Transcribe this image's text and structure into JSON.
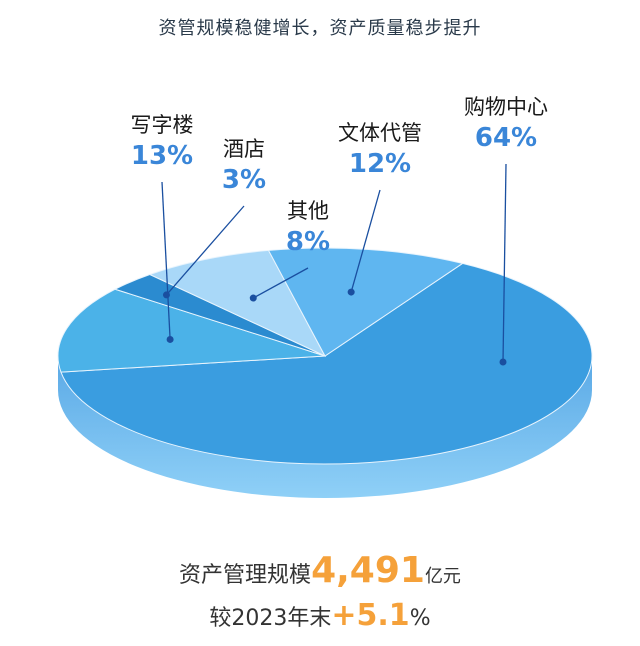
{
  "title": "资管规模稳健增长，资产质量稳步提升",
  "summary": {
    "scale_label": "资产管理规模",
    "scale_value": "4,491",
    "scale_unit": "亿元",
    "growth_label": "较2023年末",
    "growth_sign": "+",
    "growth_value": "5.1",
    "growth_unit": "%"
  },
  "colors": {
    "label_text": "#1a1a1a",
    "pct_text": "#3a86d8",
    "leader": "#1a4fa0",
    "accent": "#f5a13a"
  },
  "chart_data": {
    "type": "pie",
    "title": "",
    "slices": [
      {
        "name": "购物中心",
        "value": 64,
        "label": "64%",
        "color": "#3a9de0"
      },
      {
        "name": "写字楼",
        "value": 13,
        "label": "13%",
        "color": "#4bb2e8"
      },
      {
        "name": "酒店",
        "value": 3,
        "label": "3%",
        "color": "#2b8bd0"
      },
      {
        "name": "其他",
        "value": 8,
        "label": "8%",
        "color": "#a9d8f8"
      },
      {
        "name": "文体代管",
        "value": 12,
        "label": "12%",
        "color": "#5fb6f0"
      }
    ]
  }
}
